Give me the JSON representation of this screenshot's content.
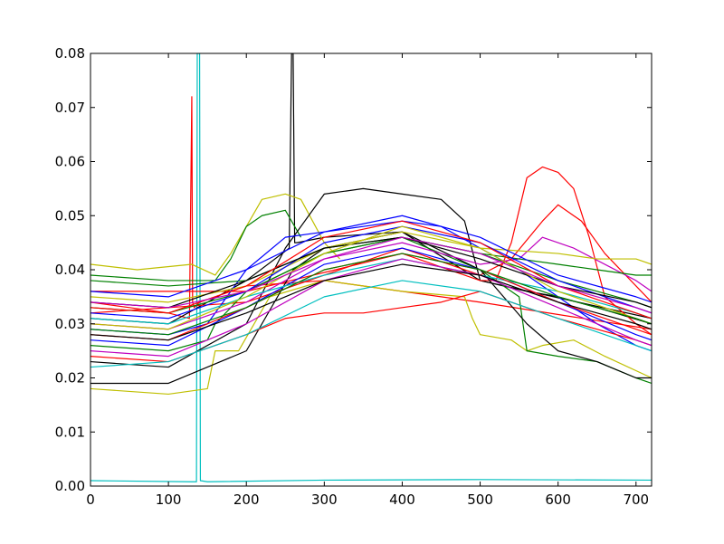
{
  "chart_data": {
    "type": "line",
    "xlim": [
      0,
      720
    ],
    "ylim": [
      0,
      0.08
    ],
    "x_ticks": [
      0,
      100,
      200,
      300,
      400,
      500,
      600,
      700
    ],
    "y_ticks": [
      0.0,
      0.01,
      0.02,
      0.03,
      0.04,
      0.05,
      0.06,
      0.07,
      0.08
    ],
    "x_tick_labels": [
      "0",
      "100",
      "200",
      "300",
      "400",
      "500",
      "600",
      "700"
    ],
    "y_tick_labels": [
      "0.00",
      "0.01",
      "0.02",
      "0.03",
      "0.04",
      "0.05",
      "0.06",
      "0.07",
      "0.08"
    ],
    "grid": false,
    "legend": "none",
    "palette": [
      "#0000ff",
      "#008000",
      "#ff0000",
      "#00bfbf",
      "#bf00bf",
      "#bfbf00",
      "#000000"
    ],
    "series": [
      {
        "color": "#00bfbf",
        "x": [
          0,
          130,
          136,
          137,
          140,
          141,
          150,
          300,
          500,
          720
        ],
        "y": [
          0.001,
          0.0008,
          0.0008,
          0.08,
          0.08,
          0.001,
          0.0008,
          0.0011,
          0.0012,
          0.0011
        ]
      },
      {
        "color": "#ff0000",
        "x": [
          0,
          50,
          100,
          127,
          130,
          131,
          133,
          140,
          200,
          300,
          400,
          500,
          720
        ],
        "y": [
          0.034,
          0.033,
          0.032,
          0.031,
          0.072,
          0.034,
          0.033,
          0.034,
          0.037,
          0.038,
          0.036,
          0.034,
          0.029
        ]
      },
      {
        "color": "#000000",
        "x": [
          0,
          100,
          200,
          255,
          258,
          260,
          262,
          265,
          300,
          400,
          500,
          720
        ],
        "y": [
          0.031,
          0.03,
          0.038,
          0.044,
          0.08,
          0.08,
          0.045,
          0.045,
          0.046,
          0.047,
          0.038,
          0.031
        ]
      },
      {
        "color": "#bfbf00",
        "x": [
          0,
          60,
          130,
          160,
          180,
          220,
          250,
          270,
          300,
          320
        ],
        "y": [
          0.041,
          0.04,
          0.041,
          0.039,
          0.043,
          0.053,
          0.054,
          0.053,
          0.045,
          0.042
        ]
      },
      {
        "color": "#008000",
        "x": [
          0,
          100,
          160,
          180,
          200,
          220,
          250,
          270
        ],
        "y": [
          0.039,
          0.038,
          0.038,
          0.042,
          0.048,
          0.05,
          0.051,
          0.046
        ]
      },
      {
        "color": "#000000",
        "x": [
          0,
          100,
          200,
          250,
          300,
          350,
          400,
          450,
          480,
          500,
          560,
          600,
          650,
          720
        ],
        "y": [
          0.023,
          0.022,
          0.03,
          0.044,
          0.054,
          0.055,
          0.054,
          0.053,
          0.049,
          0.038,
          0.036,
          0.035,
          0.033,
          0.03
        ]
      },
      {
        "color": "#ff0000",
        "x": [
          0,
          200,
          400,
          500,
          520,
          540,
          560,
          580,
          600,
          620,
          640,
          660,
          700,
          720
        ],
        "y": [
          0.036,
          0.036,
          0.043,
          0.038,
          0.038,
          0.045,
          0.057,
          0.059,
          0.058,
          0.055,
          0.046,
          0.035,
          0.03,
          0.028
        ]
      },
      {
        "color": "#ff0000",
        "x": [
          0,
          200,
          400,
          500,
          540,
          580,
          600,
          630,
          660,
          720
        ],
        "y": [
          0.032,
          0.034,
          0.044,
          0.039,
          0.042,
          0.049,
          0.052,
          0.049,
          0.043,
          0.034
        ]
      },
      {
        "color": "#bfbf00",
        "x": [
          0,
          100,
          150,
          160,
          190,
          230,
          300,
          400,
          480,
          490,
          500,
          540,
          560,
          580,
          620,
          660,
          720
        ],
        "y": [
          0.018,
          0.017,
          0.018,
          0.025,
          0.025,
          0.035,
          0.038,
          0.036,
          0.035,
          0.031,
          0.028,
          0.027,
          0.025,
          0.026,
          0.027,
          0.024,
          0.02
        ]
      },
      {
        "color": "#008000",
        "x": [
          0,
          100,
          150,
          160,
          200,
          300,
          400,
          500,
          550,
          560,
          600,
          650,
          700,
          720
        ],
        "y": [
          0.026,
          0.025,
          0.027,
          0.03,
          0.036,
          0.043,
          0.046,
          0.04,
          0.035,
          0.025,
          0.024,
          0.023,
          0.02,
          0.019
        ]
      },
      {
        "color": "#000000",
        "x": [
          0,
          100,
          150,
          200,
          260,
          300,
          400,
          500,
          560,
          600,
          650,
          700,
          720
        ],
        "y": [
          0.019,
          0.019,
          0.022,
          0.025,
          0.04,
          0.044,
          0.047,
          0.04,
          0.03,
          0.025,
          0.023,
          0.02,
          0.02
        ]
      },
      {
        "color": "#0000ff",
        "x": [
          0,
          100,
          150,
          180,
          200,
          250,
          300,
          350,
          400,
          450,
          500,
          550,
          600,
          650,
          700,
          720
        ],
        "y": [
          0.029,
          0.028,
          0.03,
          0.036,
          0.04,
          0.046,
          0.047,
          0.048,
          0.049,
          0.048,
          0.044,
          0.04,
          0.035,
          0.03,
          0.026,
          0.025
        ]
      },
      {
        "color": "#0000ff",
        "x": [
          0,
          100,
          200,
          300,
          400,
          500,
          600,
          700,
          720
        ],
        "y": [
          0.027,
          0.026,
          0.033,
          0.041,
          0.044,
          0.04,
          0.034,
          0.028,
          0.027
        ]
      },
      {
        "color": "#008000",
        "x": [
          0,
          100,
          200,
          300,
          400,
          500,
          600,
          700,
          720
        ],
        "y": [
          0.033,
          0.032,
          0.036,
          0.043,
          0.046,
          0.043,
          0.038,
          0.034,
          0.033
        ]
      },
      {
        "color": "#bf00bf",
        "x": [
          0,
          100,
          200,
          300,
          400,
          500,
          550,
          580,
          620,
          700,
          720
        ],
        "y": [
          0.03,
          0.029,
          0.034,
          0.042,
          0.045,
          0.041,
          0.042,
          0.046,
          0.044,
          0.038,
          0.036
        ]
      },
      {
        "color": "#00bfbf",
        "x": [
          0,
          100,
          200,
          300,
          400,
          500,
          600,
          700,
          720
        ],
        "y": [
          0.031,
          0.03,
          0.035,
          0.039,
          0.042,
          0.039,
          0.036,
          0.032,
          0.031
        ]
      },
      {
        "color": "#ff0000",
        "x": [
          0,
          100,
          200,
          250,
          300,
          350,
          400,
          450,
          500,
          600,
          700,
          720
        ],
        "y": [
          0.024,
          0.023,
          0.028,
          0.031,
          0.032,
          0.032,
          0.033,
          0.034,
          0.036,
          0.031,
          0.027,
          0.026
        ]
      },
      {
        "color": "#bfbf00",
        "x": [
          0,
          100,
          200,
          300,
          400,
          500,
          600,
          650,
          700,
          720
        ],
        "y": [
          0.035,
          0.034,
          0.037,
          0.044,
          0.047,
          0.044,
          0.043,
          0.042,
          0.042,
          0.041
        ]
      },
      {
        "color": "#008000",
        "x": [
          0,
          100,
          200,
          300,
          400,
          500,
          550,
          600,
          650,
          700,
          720
        ],
        "y": [
          0.038,
          0.037,
          0.038,
          0.044,
          0.046,
          0.043,
          0.042,
          0.041,
          0.04,
          0.039,
          0.039
        ]
      },
      {
        "color": "#0000ff",
        "x": [
          0,
          100,
          200,
          300,
          400,
          500,
          600,
          700,
          720
        ],
        "y": [
          0.032,
          0.031,
          0.036,
          0.045,
          0.048,
          0.045,
          0.038,
          0.033,
          0.032
        ]
      },
      {
        "color": "#000000",
        "x": [
          0,
          100,
          200,
          300,
          400,
          500,
          600,
          700,
          720
        ],
        "y": [
          0.034,
          0.033,
          0.038,
          0.044,
          0.046,
          0.042,
          0.037,
          0.034,
          0.033
        ]
      },
      {
        "color": "#ff0000",
        "x": [
          0,
          100,
          200,
          300,
          400,
          500,
          600,
          700,
          720
        ],
        "y": [
          0.028,
          0.027,
          0.033,
          0.04,
          0.043,
          0.04,
          0.034,
          0.029,
          0.028
        ]
      },
      {
        "color": "#bf00bf",
        "x": [
          0,
          100,
          200,
          300,
          400,
          500,
          600,
          700,
          720
        ],
        "y": [
          0.025,
          0.024,
          0.03,
          0.038,
          0.042,
          0.039,
          0.033,
          0.027,
          0.026
        ]
      },
      {
        "color": "#00bfbf",
        "x": [
          0,
          100,
          200,
          300,
          400,
          500,
          600,
          700,
          720
        ],
        "y": [
          0.022,
          0.023,
          0.028,
          0.035,
          0.038,
          0.036,
          0.031,
          0.026,
          0.025
        ]
      },
      {
        "color": "#bfbf00",
        "x": [
          0,
          100,
          200,
          300,
          400,
          500,
          600,
          700,
          720
        ],
        "y": [
          0.03,
          0.029,
          0.035,
          0.043,
          0.048,
          0.044,
          0.036,
          0.031,
          0.03
        ]
      },
      {
        "color": "#0000ff",
        "x": [
          0,
          100,
          200,
          300,
          400,
          500,
          600,
          700,
          720
        ],
        "y": [
          0.036,
          0.035,
          0.04,
          0.047,
          0.05,
          0.046,
          0.039,
          0.035,
          0.034
        ]
      },
      {
        "color": "#008000",
        "x": [
          0,
          100,
          200,
          300,
          400,
          500,
          600,
          700,
          720
        ],
        "y": [
          0.029,
          0.028,
          0.033,
          0.04,
          0.043,
          0.04,
          0.035,
          0.031,
          0.03
        ]
      },
      {
        "color": "#ff0000",
        "x": [
          0,
          100,
          200,
          300,
          400,
          500,
          600,
          700,
          720
        ],
        "y": [
          0.033,
          0.032,
          0.037,
          0.046,
          0.049,
          0.045,
          0.037,
          0.032,
          0.031
        ]
      },
      {
        "color": "#000000",
        "x": [
          0,
          100,
          200,
          300,
          400,
          500,
          600,
          700,
          720
        ],
        "y": [
          0.028,
          0.027,
          0.032,
          0.038,
          0.041,
          0.039,
          0.034,
          0.03,
          0.029
        ]
      },
      {
        "color": "#bf00bf",
        "x": [
          0,
          100,
          200,
          300,
          400,
          500,
          600,
          700,
          720
        ],
        "y": [
          0.034,
          0.033,
          0.036,
          0.042,
          0.046,
          0.043,
          0.037,
          0.033,
          0.032
        ]
      }
    ]
  }
}
